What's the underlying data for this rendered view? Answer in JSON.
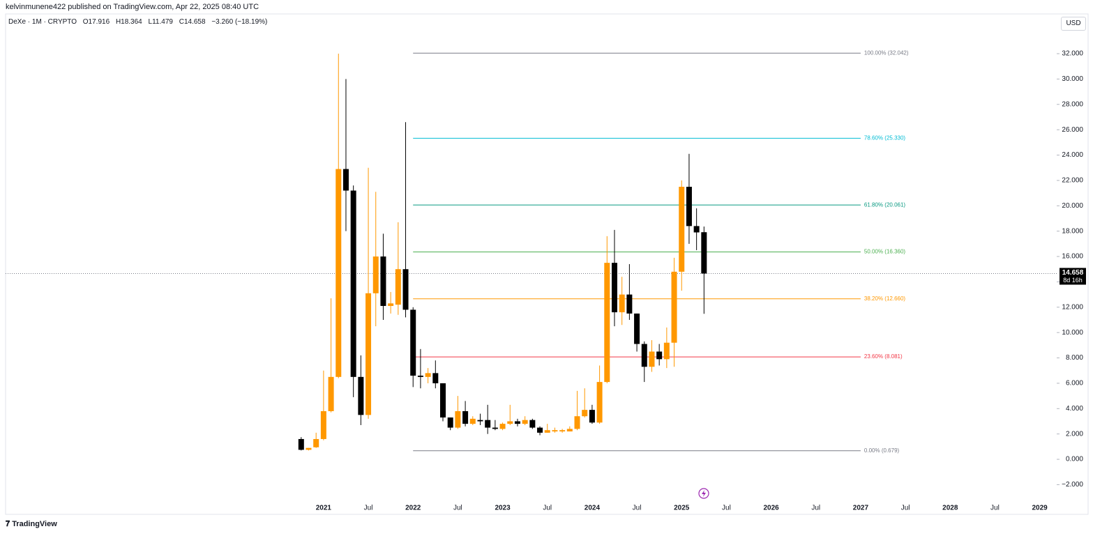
{
  "header": {
    "publisher": "kelvinmunene422 published on TradingView.com, Apr 22, 2025 08:40 UTC",
    "symbol": "DeXe · 1M · CRYPTO",
    "open": "O17.916",
    "high": "H18.364",
    "low": "L11.479",
    "close": "C14.658",
    "change": "−3.260 (−18.19%)",
    "currency": "USD",
    "brand": "TradingView"
  },
  "chart_data": {
    "type": "candlestick",
    "x": [
      "2020-10",
      "2020-11",
      "2020-12",
      "2021-01",
      "2021-02",
      "2021-03",
      "2021-04",
      "2021-05",
      "2021-06",
      "2021-07",
      "2021-08",
      "2021-09",
      "2021-10",
      "2021-11",
      "2021-12",
      "2022-01",
      "2022-02",
      "2022-03",
      "2022-04",
      "2022-05",
      "2022-06",
      "2022-07",
      "2022-08",
      "2022-09",
      "2022-10",
      "2022-11",
      "2022-12",
      "2023-01",
      "2023-02",
      "2023-03",
      "2023-04",
      "2023-05",
      "2023-06",
      "2023-07",
      "2023-08",
      "2023-09",
      "2023-10",
      "2023-11",
      "2023-12",
      "2024-01",
      "2024-02",
      "2024-03",
      "2024-04",
      "2024-05",
      "2024-06",
      "2024-07",
      "2024-08",
      "2024-09",
      "2024-10",
      "2024-11",
      "2024-12",
      "2025-01",
      "2025-02",
      "2025-03",
      "2025-04"
    ],
    "open": [
      1.6,
      0.75,
      0.95,
      1.6,
      3.8,
      6.5,
      22.9,
      21.2,
      6.5,
      3.5,
      13.1,
      16.0,
      12.1,
      12.2,
      15.0,
      11.8,
      6.6,
      6.5,
      6.8,
      6.0,
      3.3,
      2.5,
      3.8,
      2.8,
      3.1,
      3.1,
      2.5,
      2.4,
      2.8,
      3.0,
      2.8,
      3.1,
      2.5,
      2.1,
      2.2,
      2.2,
      2.2,
      2.4,
      3.4,
      3.9,
      2.9,
      6.1,
      15.5,
      11.6,
      13.0,
      11.5,
      9.1,
      7.3,
      8.5,
      7.9,
      9.2,
      14.8,
      21.5,
      18.4,
      17.916
    ],
    "high": [
      1.75,
      0.9,
      2.1,
      7.0,
      12.7,
      32.0,
      30.0,
      21.6,
      8.2,
      23.0,
      21.1,
      17.8,
      13.2,
      18.7,
      26.6,
      12.0,
      8.7,
      7.2,
      7.8,
      6.0,
      3.3,
      5.0,
      4.6,
      3.4,
      3.6,
      4.3,
      3.1,
      2.9,
      4.3,
      3.2,
      3.4,
      3.2,
      2.6,
      2.8,
      2.5,
      2.4,
      2.6,
      5.4,
      5.6,
      4.3,
      7.4,
      17.6,
      18.1,
      14.4,
      15.4,
      11.5,
      9.3,
      9.4,
      9.1,
      10.4,
      15.9,
      22.0,
      24.1,
      19.8,
      18.364
    ],
    "low": [
      0.7,
      0.7,
      0.9,
      1.5,
      3.7,
      6.4,
      18.0,
      4.9,
      2.7,
      3.2,
      10.5,
      11.0,
      11.5,
      11.4,
      11.2,
      5.7,
      5.6,
      6.0,
      5.6,
      3.0,
      2.3,
      2.4,
      2.6,
      2.7,
      2.7,
      2.0,
      2.3,
      2.3,
      2.7,
      2.6,
      2.7,
      2.4,
      1.9,
      2.1,
      2.1,
      2.1,
      2.2,
      2.3,
      3.3,
      2.8,
      2.8,
      6.0,
      10.5,
      10.6,
      11.0,
      8.5,
      6.1,
      6.9,
      7.4,
      7.2,
      7.3,
      13.3,
      17.0,
      16.5,
      11.479
    ],
    "close": [
      0.75,
      0.9,
      1.6,
      3.8,
      6.5,
      22.9,
      21.2,
      6.5,
      3.5,
      13.1,
      16.0,
      12.1,
      12.3,
      15.0,
      11.8,
      6.6,
      6.5,
      6.8,
      6.0,
      3.3,
      2.5,
      3.8,
      2.8,
      3.2,
      3.0,
      2.5,
      2.4,
      2.8,
      3.0,
      2.8,
      3.1,
      2.5,
      2.1,
      2.3,
      2.3,
      2.3,
      2.4,
      3.4,
      3.9,
      2.9,
      6.1,
      15.5,
      11.6,
      13.0,
      11.5,
      9.1,
      7.3,
      8.5,
      7.9,
      9.2,
      14.8,
      21.5,
      18.4,
      17.9,
      14.658
    ],
    "up_color": "#ff9800",
    "down_color": "#000000",
    "xlim": [
      "2017-06",
      "2029-03"
    ],
    "xticks": [
      {
        "value": "2021-01",
        "label": "2021"
      },
      {
        "value": "2021-07",
        "label": "Jul"
      },
      {
        "value": "2022-01",
        "label": "2022"
      },
      {
        "value": "2022-07",
        "label": "Jul"
      },
      {
        "value": "2023-01",
        "label": "2023"
      },
      {
        "value": "2023-07",
        "label": "Jul"
      },
      {
        "value": "2024-01",
        "label": "2024"
      },
      {
        "value": "2024-07",
        "label": "Jul"
      },
      {
        "value": "2025-01",
        "label": "2025"
      },
      {
        "value": "2025-07",
        "label": "Jul"
      },
      {
        "value": "2026-01",
        "label": "2026"
      },
      {
        "value": "2026-07",
        "label": "Jul"
      },
      {
        "value": "2027-01",
        "label": "2027"
      },
      {
        "value": "2027-07",
        "label": "Jul"
      },
      {
        "value": "2028-01",
        "label": "2028"
      },
      {
        "value": "2028-07",
        "label": "Jul"
      },
      {
        "value": "2029-01",
        "label": "2029"
      }
    ],
    "ylim": [
      -4.34,
      33.76
    ],
    "yticks": [
      {
        "value": -2,
        "label": "−2.000"
      },
      {
        "value": 0,
        "label": "0.000"
      },
      {
        "value": 2,
        "label": "2.000"
      },
      {
        "value": 4,
        "label": "4.000"
      },
      {
        "value": 6,
        "label": "6.000"
      },
      {
        "value": 8,
        "label": "8.000"
      },
      {
        "value": 10,
        "label": "10.000"
      },
      {
        "value": 12,
        "label": "12.000"
      },
      {
        "value": 14,
        "label": "14.000"
      },
      {
        "value": 16,
        "label": "16.000"
      },
      {
        "value": 18,
        "label": "18.000"
      },
      {
        "value": 20,
        "label": "20.000"
      },
      {
        "value": 22,
        "label": "22.000"
      },
      {
        "value": 24,
        "label": "24.000"
      },
      {
        "value": 26,
        "label": "26.000"
      },
      {
        "value": 28,
        "label": "28.000"
      },
      {
        "value": 30,
        "label": "30.000"
      },
      {
        "value": 32,
        "label": "32.000"
      }
    ],
    "fib_range": [
      "2022-01",
      "2027-01"
    ],
    "fib_levels": [
      {
        "value": 32.042,
        "label": "100.00% (32.042)",
        "color": "#787b86"
      },
      {
        "value": 25.33,
        "label": "78.60% (25.330)",
        "color": "#00bcd4"
      },
      {
        "value": 20.061,
        "label": "61.80% (20.061)",
        "color": "#089981"
      },
      {
        "value": 16.36,
        "label": "50.00% (16.360)",
        "color": "#4caf50"
      },
      {
        "value": 12.66,
        "label": "38.20% (12.660)",
        "color": "#ff9800"
      },
      {
        "value": 8.081,
        "label": "23.60% (8.081)",
        "color": "#f23645"
      },
      {
        "value": 0.679,
        "label": "0.00% (0.679)",
        "color": "#787b86"
      }
    ],
    "last_price": {
      "value": 14.658,
      "label": "14.658"
    },
    "countdown": "8d 16h"
  }
}
